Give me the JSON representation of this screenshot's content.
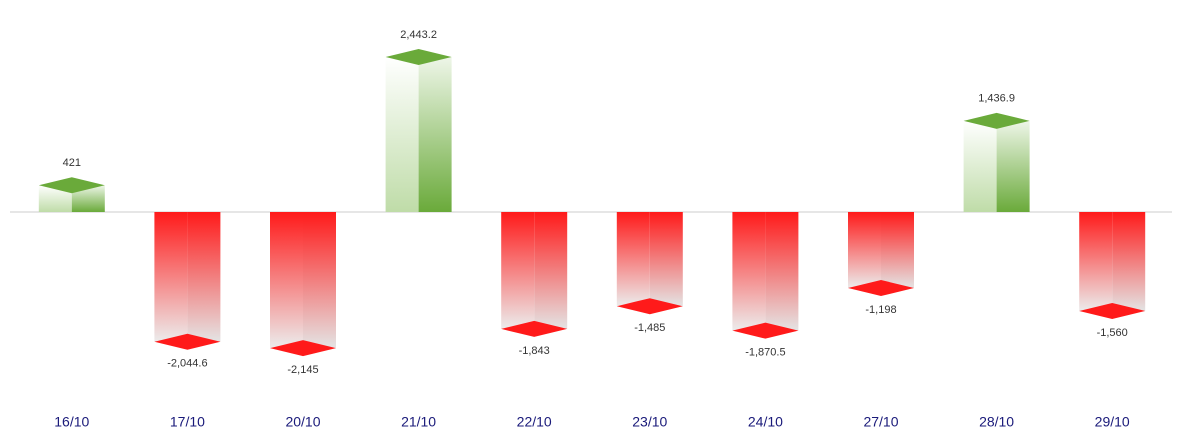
{
  "chart_data": {
    "type": "bar",
    "categories": [
      "16/10",
      "17/10",
      "20/10",
      "21/10",
      "22/10",
      "23/10",
      "24/10",
      "27/10",
      "28/10",
      "29/10"
    ],
    "values": [
      421,
      -2044.6,
      -2145,
      2443.2,
      -1843,
      -1485,
      -1870.5,
      -1198,
      1436.9,
      -1560
    ],
    "value_labels": [
      "421",
      "-2,044.6",
      "-2,145",
      "2,443.2",
      "-1,843",
      "-1,485",
      "-1,870.5",
      "-1,198",
      "1,436.9",
      "-1,560"
    ],
    "positive_color": "#6aaa3a",
    "negative_color": "#ff1a1a"
  }
}
